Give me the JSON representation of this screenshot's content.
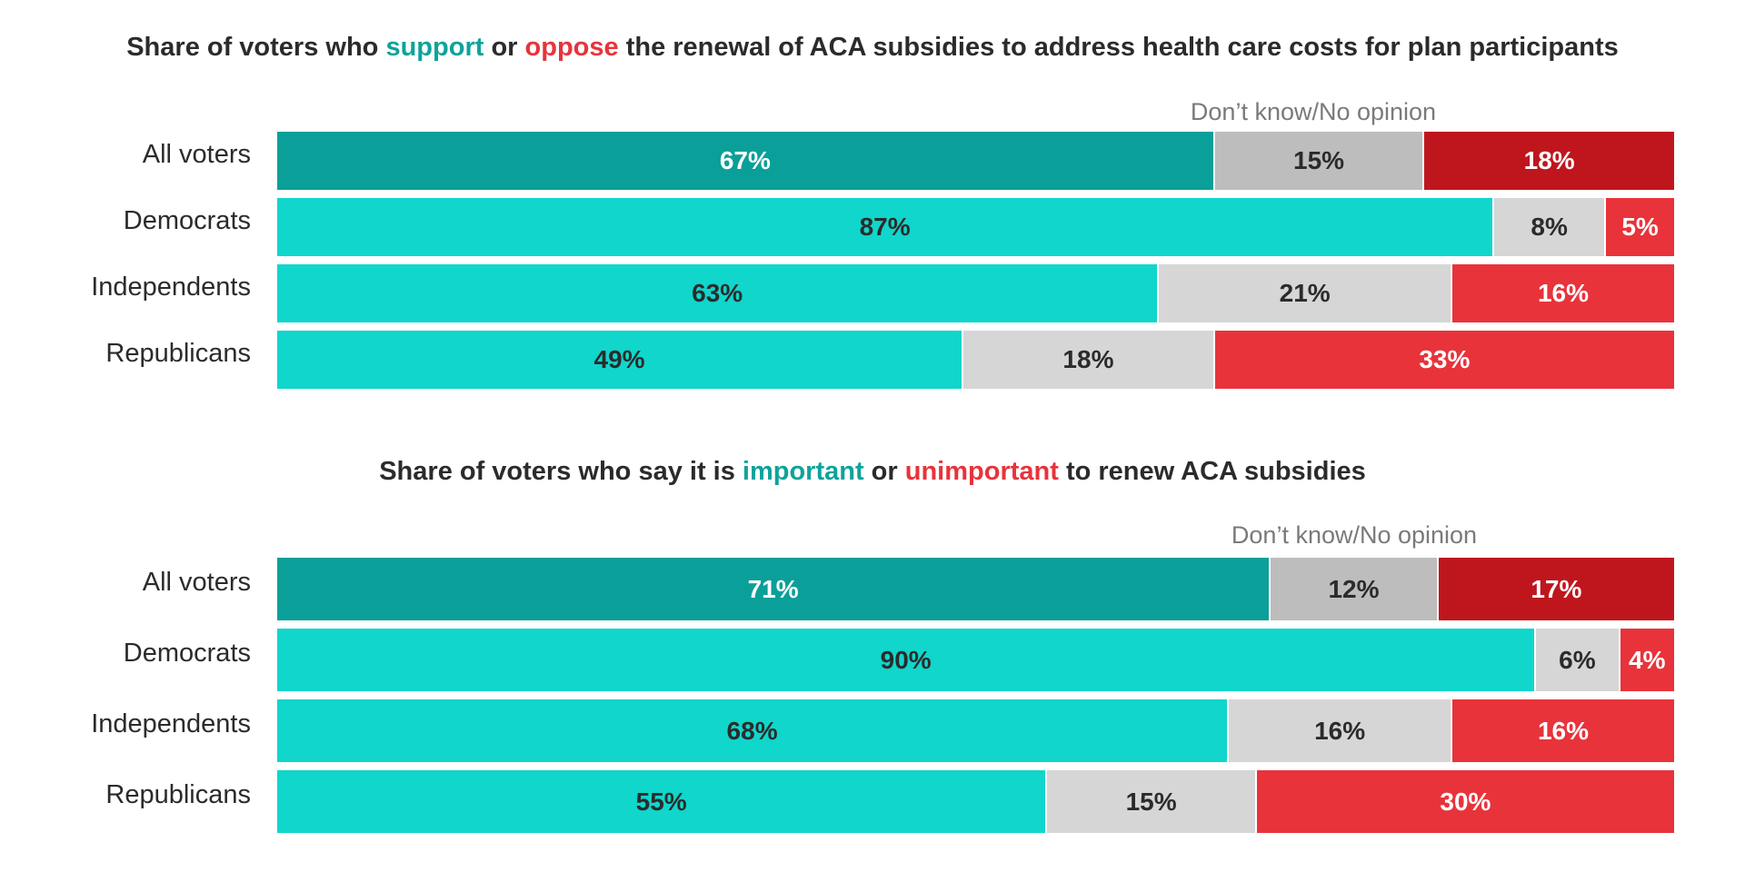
{
  "colors": {
    "support_all": "#0b9f99",
    "support": "#10d6cc",
    "dontknow_all": "#bdbdbd",
    "dontknow": "#d6d6d6",
    "oppose_all": "#bf161e",
    "oppose": "#e8333b",
    "title_positive": "#0ea39b",
    "title_negative": "#e8333b",
    "text_dark": "#2b2b2b",
    "text_light": "#ffffff"
  },
  "chart_data": [
    {
      "type": "bar",
      "orientation": "horizontal",
      "stacked": true,
      "title": {
        "before": "Share of voters who ",
        "positive": "support",
        "middle": " or ",
        "negative": "oppose",
        "after": " the renewal of ACA subsidies to address health care costs for plan participants"
      },
      "dontknow_label": "Don’t know/No opinion",
      "categories": [
        "All voters",
        "Democrats",
        "Independents",
        "Republicans"
      ],
      "series": [
        {
          "values": [
            67,
            87,
            63,
            49
          ],
          "labels": [
            "67%",
            "87%",
            "63%",
            "49%"
          ]
        },
        {
          "name": "Don’t know/No opinion",
          "values": [
            15,
            8,
            21,
            18
          ],
          "labels": [
            "15%",
            "8%",
            "21%",
            "18%"
          ]
        },
        {
          "values": [
            18,
            5,
            16,
            33
          ],
          "labels": [
            "18%",
            "5%",
            "16%",
            "33%"
          ]
        }
      ],
      "xlim": [
        0,
        100
      ]
    },
    {
      "type": "bar",
      "orientation": "horizontal",
      "stacked": true,
      "title": {
        "before": "Share of voters who say it is ",
        "positive": "important",
        "middle": " or ",
        "negative": "unimportant",
        "after": " to renew ACA subsidies"
      },
      "dontknow_label": "Don’t know/No opinion",
      "categories": [
        "All voters",
        "Democrats",
        "Independents",
        "Republicans"
      ],
      "series": [
        {
          "values": [
            71,
            90,
            68,
            55
          ],
          "labels": [
            "71%",
            "90%",
            "68%",
            "55%"
          ]
        },
        {
          "name": "Don’t know/No opinion",
          "values": [
            12,
            6,
            16,
            15
          ],
          "labels": [
            "12%",
            "6%",
            "16%",
            "15%"
          ]
        },
        {
          "values": [
            17,
            4,
            16,
            30
          ],
          "labels": [
            "17%",
            "4%",
            "16%",
            "30%"
          ]
        }
      ],
      "xlim": [
        0,
        100
      ]
    }
  ]
}
